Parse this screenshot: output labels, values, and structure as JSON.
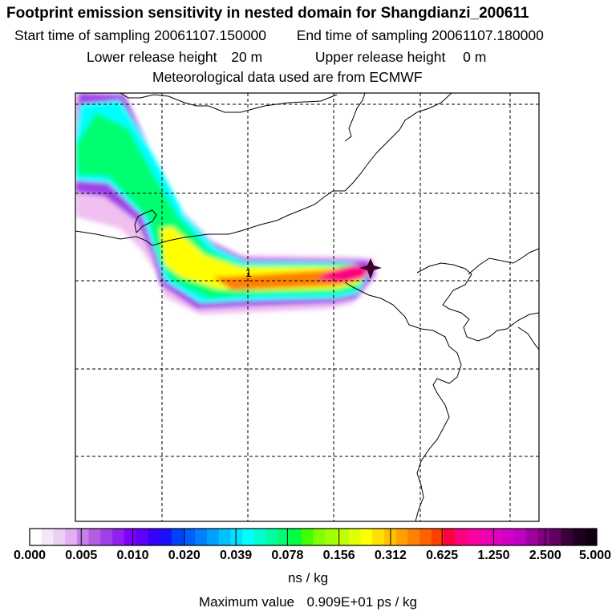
{
  "header": {
    "title": "Footprint emission sensitivity in nested domain for Shangdianzi_200611",
    "start_label": "Start time of sampling",
    "start_value": "20061107.150000",
    "end_label": "End time of sampling",
    "end_value": "20061107.180000",
    "lower_label": "Lower release height",
    "lower_value": "20 m",
    "upper_label": "Upper release height",
    "upper_value": "0 m",
    "met_line": "Meteorological data used are from ECMWF"
  },
  "map": {
    "receptor_marker": "receptor-star-icon",
    "label_mark": "1"
  },
  "colorbar": {
    "tick_labels": [
      "0.000",
      "0.005",
      "0.010",
      "0.020",
      "0.039",
      "0.078",
      "0.156",
      "0.312",
      "0.625",
      "1.250",
      "2.500",
      "5.000"
    ],
    "colors": [
      "#ffffff",
      "#f5e6fa",
      "#ebcdf5",
      "#e0b0f0",
      "#c77ee6",
      "#b35ee0",
      "#a040e8",
      "#9020f0",
      "#7f00ff",
      "#6000ff",
      "#3a00ff",
      "#1a10ff",
      "#0040ff",
      "#0060ff",
      "#0080ff",
      "#00a0ff",
      "#00c0ff",
      "#00e0ff",
      "#00ffff",
      "#00ffd0",
      "#00ffa0",
      "#00ff70",
      "#00ff40",
      "#40ff00",
      "#80ff00",
      "#a0ff00",
      "#c0ff00",
      "#e0ff00",
      "#ffff00",
      "#ffe000",
      "#ffc000",
      "#ffa000",
      "#ff8000",
      "#ff6000",
      "#ff4000",
      "#ff0040",
      "#ff0080",
      "#ff00a0",
      "#f000b0",
      "#e000c0",
      "#d000c8",
      "#c000c0",
      "#a000a0",
      "#800080",
      "#600060",
      "#3a003a",
      "#200020",
      "#100010"
    ],
    "units": "ns / kg"
  },
  "footer": {
    "max_label": "Maximum value",
    "max_value": "0.909E+01 ps / kg"
  },
  "colors": {
    "plume_outer": "#f0c0f0",
    "plume_violet": "#a040e8",
    "plume_cyan": "#00ffff",
    "plume_green": "#00ff70",
    "plume_yellow": "#ffff00",
    "plume_orange": "#ff8000",
    "plume_magenta": "#ff0080"
  }
}
